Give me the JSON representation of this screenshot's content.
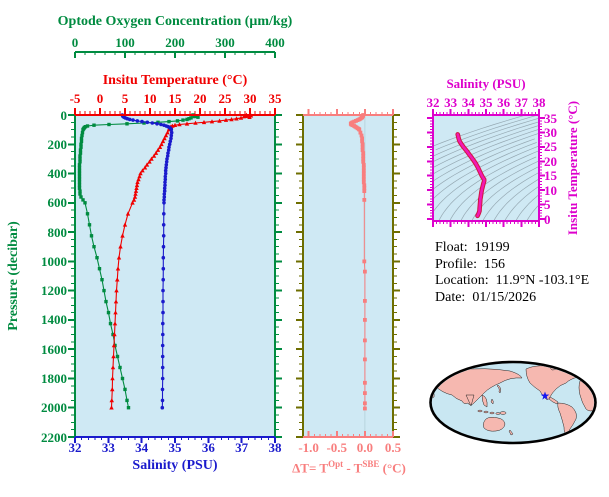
{
  "info": {
    "rows": [
      {
        "label": "Float:",
        "value": "19199"
      },
      {
        "label": "Profile:",
        "value": "156"
      },
      {
        "label": "Location:",
        "value": "11.9°N -103.1°E"
      },
      {
        "label": "Date:",
        "value": "01/15/2026"
      }
    ]
  },
  "chart_data": [
    {
      "type": "line",
      "id": "profile-depth-chart",
      "ylabel": "Pressure (decibar)",
      "ycolor": "#008b40",
      "ylim": [
        0,
        2200
      ],
      "ytick_labels": [
        "0",
        "200",
        "400",
        "600",
        "800",
        "1000",
        "1200",
        "1400",
        "1600",
        "1800",
        "2000",
        "2200"
      ],
      "background": "#cfe9f4",
      "x_axes": {
        "oxygen": {
          "label": "Optode Oxygen Concentration (μm/kg)",
          "lim": [
            0,
            400
          ],
          "tick_labels": [
            "0",
            "100",
            "200",
            "300",
            "400"
          ],
          "color": "#008b40"
        },
        "temperature": {
          "label": "Insitu Temperature (°C)",
          "lim": [
            -5,
            35
          ],
          "tick_labels": [
            "-5",
            "0",
            "5",
            "10",
            "15",
            "20",
            "25",
            "30",
            "35"
          ],
          "color": "#f00000"
        },
        "salinity": {
          "label": "Salinity (PSU)",
          "lim": [
            32,
            38
          ],
          "tick_labels": [
            "32",
            "33",
            "34",
            "35",
            "36",
            "37",
            "38"
          ],
          "color": "#1a1acc"
        }
      },
      "pressure": [
        0,
        5,
        10,
        15,
        20,
        25,
        30,
        35,
        40,
        45,
        50,
        55,
        60,
        65,
        70,
        75,
        80,
        85,
        90,
        95,
        100,
        120,
        140,
        160,
        180,
        200,
        220,
        240,
        260,
        280,
        300,
        320,
        340,
        360,
        380,
        400,
        420,
        440,
        460,
        480,
        500,
        520,
        540,
        560,
        580,
        600,
        675,
        750,
        825,
        900,
        975,
        1050,
        1125,
        1200,
        1275,
        1350,
        1425,
        1500,
        1575,
        1650,
        1725,
        1800,
        1875,
        1950,
        2000
      ],
      "series": [
        {
          "name": "oxygen",
          "axis": "oxygen",
          "color": "#008b40",
          "marker": "square",
          "values": [
            236,
            239,
            241,
            246,
            232,
            228,
            224,
            216,
            205,
            188,
            166,
            138,
            104,
            68,
            38,
            25,
            21,
            19,
            18,
            17,
            16,
            15,
            14,
            13,
            13,
            12,
            12,
            11,
            11,
            10,
            10,
            10,
            9,
            9,
            9,
            9,
            9,
            9,
            9,
            9,
            9,
            10,
            10,
            12,
            16,
            20,
            25,
            29,
            33,
            38,
            44,
            49,
            54,
            58,
            62,
            67,
            71,
            76,
            80,
            85,
            90,
            95,
            100,
            104,
            107
          ]
        },
        {
          "name": "temperature",
          "axis": "temperature",
          "color": "#f00000",
          "marker": "triangle",
          "values": [
            29.3,
            30.2,
            28.8,
            29.9,
            28.2,
            27.3,
            26.3,
            25.2,
            23.9,
            22.4,
            20.8,
            19.1,
            17.4,
            15.9,
            15.0,
            14.5,
            14.2,
            14.0,
            13.9,
            13.85,
            13.8,
            13.5,
            13.2,
            12.9,
            12.6,
            12.3,
            12.0,
            11.6,
            11.2,
            10.8,
            10.3,
            9.9,
            9.4,
            9.0,
            8.5,
            8.1,
            7.9,
            7.7,
            7.5,
            7.4,
            7.3,
            7.2,
            7.1,
            7.0,
            6.8,
            6.5,
            5.6,
            5.0,
            4.5,
            4.1,
            3.8,
            3.6,
            3.45,
            3.3,
            3.2,
            3.1,
            3.0,
            2.9,
            2.8,
            2.7,
            2.6,
            2.5,
            2.45,
            2.35,
            2.3
          ]
        },
        {
          "name": "salinity",
          "axis": "salinity",
          "color": "#1a1acc",
          "marker": "circle",
          "values": [
            33.42,
            33.43,
            33.44,
            33.47,
            33.51,
            33.57,
            33.64,
            33.74,
            33.87,
            34.01,
            34.17,
            34.32,
            34.46,
            34.58,
            34.67,
            34.74,
            34.79,
            34.83,
            34.86,
            34.88,
            34.89,
            34.9,
            34.89,
            34.88,
            34.86,
            34.84,
            34.82,
            34.81,
            34.79,
            34.78,
            34.76,
            34.75,
            34.74,
            34.73,
            34.72,
            34.72,
            34.71,
            34.71,
            34.7,
            34.7,
            34.69,
            34.69,
            34.68,
            34.68,
            34.67,
            34.67,
            34.665,
            34.66,
            34.66,
            34.655,
            34.65,
            34.65,
            34.645,
            34.64,
            34.64,
            34.64,
            34.635,
            34.635,
            34.63,
            34.63,
            34.63,
            34.63,
            34.625,
            34.625,
            34.62
          ]
        }
      ]
    },
    {
      "type": "line",
      "id": "delta-t-chart",
      "xlabel": "ΔT= T^Opt - T^SBE (°C)",
      "xlabel_parts": {
        "prefix": "ΔT= T",
        "sup1": "Opt",
        "infix": " - T",
        "sup2": "SBE",
        "suffix": " (°C)"
      },
      "xlim": [
        -1.1,
        0.5
      ],
      "xtick_labels": [
        "-1.0",
        "-0.5",
        "0.0",
        "0.5"
      ],
      "ylim": [
        0,
        2200
      ],
      "frame_color": "#6e6e00",
      "axis_color": "#f87e7e",
      "zero_line_color": "#b9d4de",
      "background": "#cfe9f4",
      "series": [
        {
          "name": "delta-t",
          "color": "#f87e7e",
          "marker": "square",
          "pressure": [
            0,
            5,
            10,
            15,
            20,
            25,
            30,
            35,
            40,
            45,
            50,
            55,
            60,
            65,
            70,
            75,
            80,
            85,
            90,
            95,
            100,
            120,
            140,
            160,
            180,
            200,
            220,
            240,
            260,
            280,
            300,
            320,
            340,
            360,
            380,
            400,
            420,
            440,
            460,
            480,
            500,
            520,
            580,
            1000,
            1070,
            1270,
            1400,
            1540,
            1670,
            1830,
            1900,
            1970,
            2005
          ],
          "values": [
            -0.03,
            -0.03,
            -0.04,
            -0.05,
            -0.06,
            -0.08,
            -0.1,
            -0.13,
            -0.16,
            -0.19,
            -0.22,
            -0.24,
            -0.25,
            -0.24,
            -0.22,
            -0.19,
            -0.17,
            -0.15,
            -0.13,
            -0.11,
            -0.1,
            -0.08,
            -0.06,
            -0.05,
            -0.05,
            -0.04,
            -0.04,
            -0.04,
            -0.03,
            -0.03,
            -0.03,
            -0.03,
            -0.02,
            -0.02,
            -0.02,
            -0.02,
            -0.02,
            -0.02,
            -0.02,
            -0.01,
            -0.01,
            -0.01,
            -0.01,
            -0.01,
            0,
            0,
            0,
            0,
            0,
            0,
            0,
            0,
            0
          ]
        }
      ]
    },
    {
      "type": "line",
      "id": "ts-diagram",
      "title": "Salinity (PSU)",
      "right_label": "Insitu Temperature (°C)",
      "xlim": [
        32,
        38
      ],
      "xtick_labels": [
        "32",
        "33",
        "34",
        "35",
        "36",
        "37",
        "38"
      ],
      "ylim": [
        0,
        35
      ],
      "ytick_labels": [
        "0",
        "5",
        "10",
        "15",
        "20",
        "25",
        "30",
        "35"
      ],
      "color": "#dd00cc",
      "background": "#cfe9f4",
      "contour_color": "#96a9b3",
      "contour_levels": [
        21,
        21.5,
        22,
        22.5,
        23,
        23.5,
        24,
        24.5,
        25,
        25.5,
        26,
        26.5,
        27,
        27.5,
        28,
        28.5,
        29,
        29.5,
        30
      ],
      "curve_outline_color": "#cf1640",
      "curve_color": "#f318b4",
      "series": [
        {
          "name": "ts-profile",
          "salinity": [
            33.4,
            33.42,
            33.45,
            33.5,
            33.6,
            33.72,
            33.88,
            34.05,
            34.22,
            34.4,
            34.55,
            34.67,
            34.76,
            34.82,
            34.86,
            34.89,
            34.9,
            34.89,
            34.86,
            34.83,
            34.8,
            34.77,
            34.74,
            34.72,
            34.7,
            34.68,
            34.67,
            34.66,
            34.65,
            34.64,
            34.63,
            34.6,
            34.56,
            34.52
          ],
          "temperature": [
            29.3,
            28.8,
            28.0,
            27.0,
            26.0,
            25.0,
            23.8,
            22.4,
            21.0,
            19.4,
            17.8,
            16.2,
            15.0,
            14.4,
            14.0,
            13.8,
            13.5,
            13.0,
            12.4,
            11.7,
            11.0,
            10.2,
            9.3,
            8.5,
            7.6,
            6.8,
            6.0,
            5.2,
            4.4,
            3.6,
            2.8,
            2.2,
            1.6,
            1.1
          ]
        }
      ]
    },
    {
      "type": "map",
      "id": "location-map",
      "land_color": "#f6b8b0",
      "ocean_color": "#c9e7f2",
      "outline_color": "#000000",
      "marker": {
        "shape": "star",
        "color": "#1616f0",
        "x_frac": 0.693,
        "y_frac": 0.427
      }
    }
  ]
}
